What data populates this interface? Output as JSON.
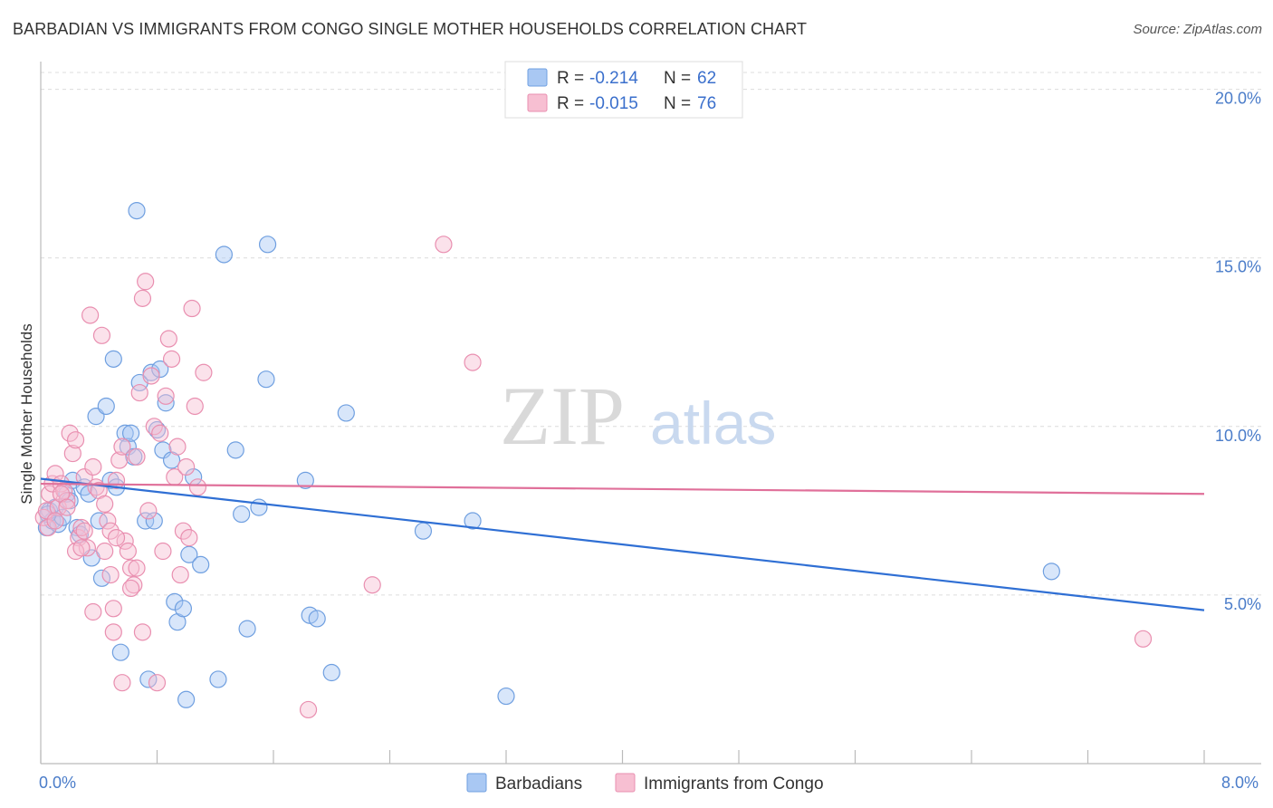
{
  "title": "BARBADIAN VS IMMIGRANTS FROM CONGO SINGLE MOTHER HOUSEHOLDS CORRELATION CHART",
  "source": "Source: ZipAtlas.com",
  "watermark": {
    "zip": "ZIP",
    "atlas": "atlas"
  },
  "legend_top": {
    "rows": [
      {
        "r_label": "R =",
        "r_value": "-0.214",
        "n_label": "N =",
        "n_value": "62",
        "color": "#a9c8f3",
        "stroke": "#6f9fe0"
      },
      {
        "r_label": "R =",
        "r_value": "-0.015",
        "n_label": "N =",
        "n_value": "76",
        "color": "#f7bfd2",
        "stroke": "#e98fb0"
      }
    ]
  },
  "legend_bottom": {
    "items": [
      {
        "label": "Barbadians",
        "color": "#a9c8f3",
        "stroke": "#6f9fe0"
      },
      {
        "label": "Immigrants from Congo",
        "color": "#f7bfd2",
        "stroke": "#e98fb0"
      }
    ]
  },
  "chart_data": {
    "type": "scatter",
    "title": "BARBADIAN VS IMMIGRANTS FROM CONGO SINGLE MOTHER HOUSEHOLDS CORRELATION CHART",
    "xlabel": "",
    "ylabel": "Single Mother Households",
    "xlim": [
      0,
      8
    ],
    "ylim": [
      0,
      20.5
    ],
    "x_tick_labels": [
      "0.0%",
      "8.0%"
    ],
    "y_ticks": [
      5,
      10,
      15,
      20
    ],
    "y_tick_labels": [
      "5.0%",
      "10.0%",
      "15.0%",
      "20.0%"
    ],
    "grid": true,
    "legend_position": "top-center",
    "series": [
      {
        "name": "Barbadians",
        "color": "#6f9fe0",
        "fill": "#a9c8f3",
        "trend": {
          "x": [
            0,
            8
          ],
          "y": [
            8.45,
            4.55
          ],
          "color": "#2f6fd4"
        },
        "points": [
          [
            0.04,
            7.0
          ],
          [
            0.06,
            7.5
          ],
          [
            0.08,
            7.2
          ],
          [
            0.1,
            7.6
          ],
          [
            0.12,
            7.1
          ],
          [
            0.15,
            7.3
          ],
          [
            0.18,
            8.0
          ],
          [
            0.2,
            7.8
          ],
          [
            0.22,
            8.4
          ],
          [
            0.25,
            7.0
          ],
          [
            0.27,
            6.8
          ],
          [
            0.3,
            8.2
          ],
          [
            0.33,
            8.0
          ],
          [
            0.35,
            6.1
          ],
          [
            0.38,
            10.3
          ],
          [
            0.4,
            7.2
          ],
          [
            0.42,
            5.5
          ],
          [
            0.45,
            10.6
          ],
          [
            0.48,
            8.4
          ],
          [
            0.5,
            12.0
          ],
          [
            0.52,
            8.2
          ],
          [
            0.55,
            3.3
          ],
          [
            0.58,
            9.8
          ],
          [
            0.6,
            9.4
          ],
          [
            0.62,
            9.8
          ],
          [
            0.64,
            9.1
          ],
          [
            0.66,
            16.4
          ],
          [
            0.68,
            11.3
          ],
          [
            0.72,
            7.2
          ],
          [
            0.74,
            2.5
          ],
          [
            0.76,
            11.6
          ],
          [
            0.78,
            7.2
          ],
          [
            0.8,
            9.9
          ],
          [
            0.82,
            11.7
          ],
          [
            0.84,
            9.3
          ],
          [
            0.86,
            10.7
          ],
          [
            0.9,
            9.0
          ],
          [
            0.92,
            4.8
          ],
          [
            0.94,
            4.2
          ],
          [
            0.98,
            4.6
          ],
          [
            1.0,
            1.9
          ],
          [
            1.02,
            6.2
          ],
          [
            1.05,
            8.5
          ],
          [
            1.1,
            5.9
          ],
          [
            1.22,
            2.5
          ],
          [
            1.26,
            15.1
          ],
          [
            1.34,
            9.3
          ],
          [
            1.38,
            7.4
          ],
          [
            1.42,
            4.0
          ],
          [
            1.5,
            7.6
          ],
          [
            1.55,
            11.4
          ],
          [
            1.56,
            15.4
          ],
          [
            1.82,
            8.4
          ],
          [
            1.85,
            4.4
          ],
          [
            1.9,
            4.3
          ],
          [
            2.0,
            2.7
          ],
          [
            2.1,
            10.4
          ],
          [
            2.63,
            6.9
          ],
          [
            2.97,
            7.2
          ],
          [
            3.2,
            2.0
          ],
          [
            6.95,
            5.7
          ],
          [
            0.05,
            7.4
          ]
        ]
      },
      {
        "name": "Immigrants from Congo",
        "color": "#e98fb0",
        "fill": "#f7bfd2",
        "trend": {
          "x": [
            0,
            8
          ],
          "y": [
            8.3,
            8.0
          ],
          "color": "#e0709a"
        },
        "points": [
          [
            0.02,
            7.3
          ],
          [
            0.04,
            7.5
          ],
          [
            0.05,
            7.0
          ],
          [
            0.06,
            8.0
          ],
          [
            0.08,
            8.3
          ],
          [
            0.1,
            8.6
          ],
          [
            0.12,
            7.6
          ],
          [
            0.14,
            8.3
          ],
          [
            0.16,
            8.1
          ],
          [
            0.18,
            7.8
          ],
          [
            0.2,
            9.8
          ],
          [
            0.22,
            9.2
          ],
          [
            0.24,
            9.6
          ],
          [
            0.26,
            6.7
          ],
          [
            0.28,
            7.0
          ],
          [
            0.3,
            8.5
          ],
          [
            0.32,
            6.4
          ],
          [
            0.34,
            13.3
          ],
          [
            0.36,
            8.8
          ],
          [
            0.38,
            8.2
          ],
          [
            0.4,
            8.1
          ],
          [
            0.42,
            12.7
          ],
          [
            0.44,
            7.7
          ],
          [
            0.46,
            7.2
          ],
          [
            0.48,
            6.9
          ],
          [
            0.5,
            3.9
          ],
          [
            0.52,
            8.4
          ],
          [
            0.54,
            9.0
          ],
          [
            0.56,
            9.4
          ],
          [
            0.58,
            6.6
          ],
          [
            0.6,
            6.3
          ],
          [
            0.62,
            5.8
          ],
          [
            0.64,
            5.3
          ],
          [
            0.66,
            9.1
          ],
          [
            0.68,
            11.0
          ],
          [
            0.7,
            13.8
          ],
          [
            0.72,
            14.3
          ],
          [
            0.74,
            7.5
          ],
          [
            0.76,
            11.5
          ],
          [
            0.78,
            10.0
          ],
          [
            0.8,
            2.4
          ],
          [
            0.82,
            9.8
          ],
          [
            0.84,
            6.3
          ],
          [
            0.86,
            10.9
          ],
          [
            0.88,
            12.6
          ],
          [
            0.9,
            12.0
          ],
          [
            0.92,
            8.5
          ],
          [
            0.94,
            9.4
          ],
          [
            0.96,
            5.6
          ],
          [
            0.98,
            6.9
          ],
          [
            1.0,
            8.8
          ],
          [
            1.02,
            6.7
          ],
          [
            1.04,
            13.5
          ],
          [
            1.06,
            10.6
          ],
          [
            1.08,
            8.2
          ],
          [
            1.12,
            11.6
          ],
          [
            0.66,
            5.8
          ],
          [
            0.5,
            4.6
          ],
          [
            0.56,
            2.4
          ],
          [
            0.7,
            3.9
          ],
          [
            1.84,
            1.6
          ],
          [
            2.28,
            5.3
          ],
          [
            2.77,
            15.4
          ],
          [
            2.97,
            11.9
          ],
          [
            7.58,
            3.7
          ],
          [
            0.14,
            8.0
          ],
          [
            0.24,
            6.3
          ],
          [
            0.28,
            6.4
          ],
          [
            0.44,
            6.3
          ],
          [
            0.48,
            5.6
          ],
          [
            0.62,
            5.2
          ],
          [
            0.36,
            4.5
          ],
          [
            0.52,
            6.7
          ],
          [
            0.18,
            7.6
          ],
          [
            0.1,
            7.2
          ],
          [
            0.3,
            6.9
          ]
        ]
      }
    ]
  }
}
